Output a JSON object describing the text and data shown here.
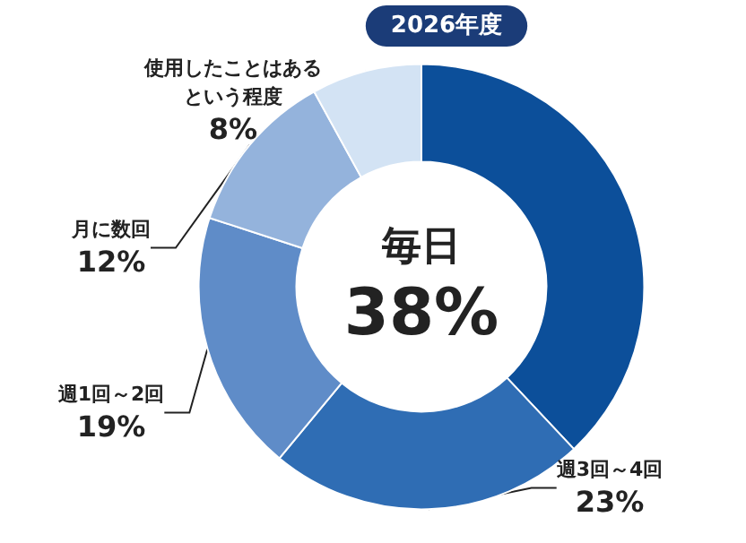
{
  "chart_data": {
    "type": "donut",
    "title": "2026年度",
    "categories": [
      "毎日",
      "週3回～4回",
      "週1回～2回",
      "月に数回",
      "使用したことはあるという程度"
    ],
    "values": [
      38,
      23,
      19,
      12,
      8
    ],
    "colors": [
      "#0c4f9a",
      "#2f6db4",
      "#5f8cc8",
      "#94b3dc",
      "#d3e3f4"
    ],
    "value_labels": [
      "38%",
      "23%",
      "19%",
      "12%",
      "8%"
    ],
    "legend": false
  }
}
